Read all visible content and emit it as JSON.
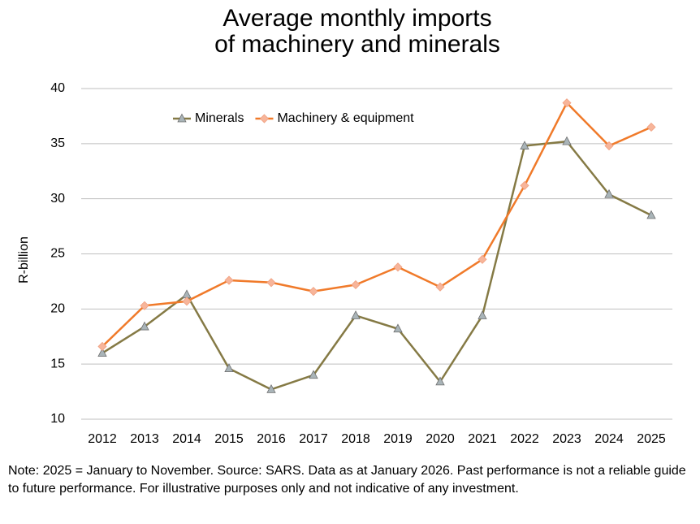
{
  "chart_data": {
    "type": "line",
    "title": [
      "Average monthly imports",
      "of machinery and minerals"
    ],
    "ylabel": "R-billion",
    "categories": [
      "2012",
      "2013",
      "2014",
      "2015",
      "2016",
      "2017",
      "2018",
      "2019",
      "2020",
      "2021",
      "2022",
      "2023",
      "2024",
      "2025"
    ],
    "series": [
      {
        "name": "Minerals",
        "color": "#857a45",
        "marker": "triangle",
        "marker_color": "#a9b4b8",
        "values": [
          16.0,
          18.4,
          21.3,
          14.6,
          12.7,
          14.0,
          19.4,
          18.2,
          13.4,
          19.4,
          34.8,
          35.2,
          30.4,
          28.5
        ]
      },
      {
        "name": "Machinery & equipment",
        "color": "#f07a2a",
        "marker": "diamond",
        "marker_color": "#f7b59a",
        "values": [
          16.6,
          20.3,
          20.7,
          22.6,
          22.4,
          21.6,
          22.2,
          23.8,
          22.0,
          24.5,
          31.2,
          38.7,
          34.8,
          36.5
        ]
      }
    ],
    "ylim": [
      10,
      40
    ],
    "yticks": [
      10,
      15,
      20,
      25,
      30,
      35,
      40
    ],
    "grid": true,
    "legend": "upper left",
    "note": "Note: 2025 = January to November. Source: SARS. Data as at January 2026. Past performance is not a reliable guide to future performance. For illustrative purposes only and not indicative of any investment."
  }
}
